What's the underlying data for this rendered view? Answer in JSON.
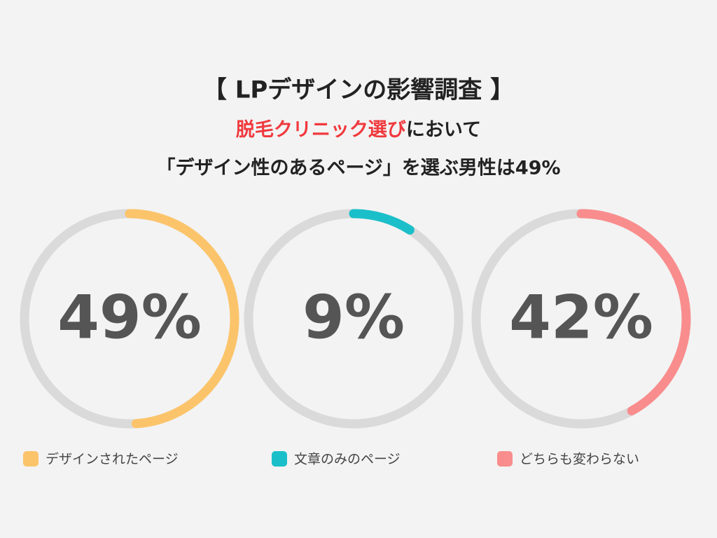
{
  "chart_data": {
    "type": "ring",
    "title": "【 LPデザインの影響調査 】",
    "subtitle": {
      "highlight": "脱毛クリニック選び",
      "text": "において"
    },
    "subtitle2": "「デザイン性のあるページ」を選ぶ男性は49%",
    "categories": [
      "デザインされたページ",
      "文章のみのページ",
      "どちらも変わらない"
    ],
    "values": [
      49,
      9,
      42
    ],
    "value_labels": [
      "49%",
      "9%",
      "42%"
    ],
    "colors": [
      "#fcc46a",
      "#1bbfc9",
      "#f98d8d"
    ],
    "track_color": "#dadada",
    "ylim": [
      0,
      100
    ]
  }
}
